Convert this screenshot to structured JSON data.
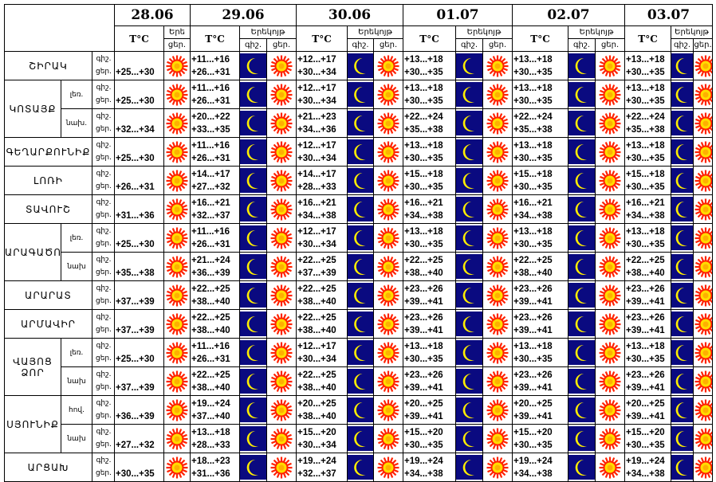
{
  "dates": [
    "28.06",
    "29.06",
    "30.06",
    "01.07",
    "02.07",
    "03.07"
  ],
  "header": {
    "temp": "T°C",
    "night": "Երեկոյթ",
    "night_short": "Երե",
    "night_abbr": "գիշ.",
    "day_abbr": "ցեր."
  },
  "labels": {
    "night": "գիշ.",
    "day": "ցեր."
  },
  "icons": {
    "day": "sun-icon",
    "night": "moon-icon"
  },
  "colors": {
    "sun": "#ff2200",
    "sun_core": "#ffdd00",
    "night_bg": "#0a0a80",
    "moon": "#ffee00"
  },
  "regions": [
    {
      "name": "ՇԻՐԱԿ",
      "subs": [
        {
          "label": "",
          "day1": "+25...+30",
          "days": [
            [
              "+11...+16",
              "+26...+31"
            ],
            [
              "+12...+17",
              "+30...+34"
            ],
            [
              "+13...+18",
              "+30...+35"
            ],
            [
              "+13...+18",
              "+30...+35"
            ],
            [
              "+13...+18",
              "+30...+35"
            ]
          ]
        }
      ]
    },
    {
      "name": "ԿՈՏԱՅՔ",
      "subs": [
        {
          "label": "լեռ.",
          "day1": "+25...+30",
          "days": [
            [
              "+11...+16",
              "+26...+31"
            ],
            [
              "+12...+17",
              "+30...+34"
            ],
            [
              "+13...+18",
              "+30...+35"
            ],
            [
              "+13...+18",
              "+30...+35"
            ],
            [
              "+13...+18",
              "+30...+35"
            ]
          ]
        },
        {
          "label": "նախ.",
          "day1": "+32...+34",
          "days": [
            [
              "+20...+22",
              "+33...+35"
            ],
            [
              "+21...+23",
              "+34...+36"
            ],
            [
              "+22...+24",
              "+35...+38"
            ],
            [
              "+22...+24",
              "+35...+38"
            ],
            [
              "+22...+24",
              "+35...+38"
            ]
          ]
        }
      ]
    },
    {
      "name": "ԳԵՂԱՐՔՈՒՆԻՔ",
      "subs": [
        {
          "label": "",
          "day1": "+25...+30",
          "days": [
            [
              "+11...+16",
              "+26...+31"
            ],
            [
              "+12...+17",
              "+30...+34"
            ],
            [
              "+13...+18",
              "+30...+35"
            ],
            [
              "+13...+18",
              "+30...+35"
            ],
            [
              "+13...+18",
              "+30...+35"
            ]
          ]
        }
      ]
    },
    {
      "name": "ԼՈՌԻ",
      "subs": [
        {
          "label": "",
          "day1": "+26...+31",
          "days": [
            [
              "+14...+17",
              "+27...+32"
            ],
            [
              "+14...+17",
              "+28...+33"
            ],
            [
              "+15...+18",
              "+30...+35"
            ],
            [
              "+15...+18",
              "+30...+35"
            ],
            [
              "+15...+18",
              "+30...+35"
            ]
          ]
        }
      ]
    },
    {
      "name": "ՏԱՎՈՒՇ",
      "subs": [
        {
          "label": "",
          "day1": "+31...+36",
          "days": [
            [
              "+16...+21",
              "+32...+37"
            ],
            [
              "+16...+21",
              "+34...+38"
            ],
            [
              "+16...+21",
              "+34...+38"
            ],
            [
              "+16...+21",
              "+34...+38"
            ],
            [
              "+16...+21",
              "+34...+38"
            ]
          ]
        }
      ]
    },
    {
      "name": "ԱՐԱԳԱԾՈՏՆ",
      "subs": [
        {
          "label": "լեռ.",
          "day1": "+25...+30",
          "days": [
            [
              "+11...+16",
              "+26...+31"
            ],
            [
              "+12...+17",
              "+30...+34"
            ],
            [
              "+13...+18",
              "+30...+35"
            ],
            [
              "+13...+18",
              "+30...+35"
            ],
            [
              "+13...+18",
              "+30...+35"
            ]
          ]
        },
        {
          "label": "նախ",
          "day1": "+35...+38",
          "days": [
            [
              "+21...+24",
              "+36...+39"
            ],
            [
              "+22...+25",
              "+37...+39"
            ],
            [
              "+22...+25",
              "+38...+40"
            ],
            [
              "+22...+25",
              "+38...+40"
            ],
            [
              "+22...+25",
              "+38...+40"
            ]
          ]
        }
      ]
    },
    {
      "name": "ԱՐԱՐԱՏ",
      "subs": [
        {
          "label": "",
          "day1": "+37...+39",
          "days": [
            [
              "+22...+25",
              "+38...+40"
            ],
            [
              "+22...+25",
              "+38...+40"
            ],
            [
              "+23...+26",
              "+39...+41"
            ],
            [
              "+23...+26",
              "+39...+41"
            ],
            [
              "+23...+26",
              "+39...+41"
            ]
          ]
        }
      ]
    },
    {
      "name": "ԱՐՄԱՎԻՐ",
      "subs": [
        {
          "label": "",
          "day1": "+37...+39",
          "days": [
            [
              "+22...+25",
              "+38...+40"
            ],
            [
              "+22...+25",
              "+38...+40"
            ],
            [
              "+23...+26",
              "+39...+41"
            ],
            [
              "+23...+26",
              "+39...+41"
            ],
            [
              "+23...+26",
              "+39...+41"
            ]
          ]
        }
      ]
    },
    {
      "name": "ՎԱՅՈՑ ՁՈՐ",
      "subs": [
        {
          "label": "լեռ.",
          "day1": "+25...+30",
          "days": [
            [
              "+11...+16",
              "+26...+31"
            ],
            [
              "+12...+17",
              "+30...+34"
            ],
            [
              "+13...+18",
              "+30...+35"
            ],
            [
              "+13...+18",
              "+30...+35"
            ],
            [
              "+13...+18",
              "+30...+35"
            ]
          ]
        },
        {
          "label": "նախ",
          "day1": "+37...+39",
          "days": [
            [
              "+22...+25",
              "+38...+40"
            ],
            [
              "+22...+25",
              "+38...+40"
            ],
            [
              "+23...+26",
              "+39...+41"
            ],
            [
              "+23...+26",
              "+39...+41"
            ],
            [
              "+23...+26",
              "+39...+41"
            ]
          ]
        }
      ]
    },
    {
      "name": "ՍՅՈՒՆԻՔ",
      "subs": [
        {
          "label": "հով.",
          "day1": "+36...+39",
          "days": [
            [
              "+19...+24",
              "+37...+40"
            ],
            [
              "+20...+25",
              "+38...+40"
            ],
            [
              "+20...+25",
              "+39...+41"
            ],
            [
              "+20...+25",
              "+39...+41"
            ],
            [
              "+20...+25",
              "+39...+41"
            ]
          ]
        },
        {
          "label": "նախ",
          "day1": "+27...+32",
          "days": [
            [
              "+13...+18",
              "+28...+33"
            ],
            [
              "+15...+20",
              "+30...+34"
            ],
            [
              "+15...+20",
              "+30...+35"
            ],
            [
              "+15...+20",
              "+30...+35"
            ],
            [
              "+15...+20",
              "+30...+35"
            ]
          ]
        }
      ]
    },
    {
      "name": "ԱՐՑԱԽ",
      "subs": [
        {
          "label": "",
          "day1": "+30...+35",
          "days": [
            [
              "+18...+23",
              "+31...+36"
            ],
            [
              "+19...+24",
              "+32...+37"
            ],
            [
              "+19...+24",
              "+34...+38"
            ],
            [
              "+19...+24",
              "+34...+38"
            ],
            [
              "+19...+24",
              "+34...+38"
            ]
          ]
        }
      ]
    }
  ]
}
